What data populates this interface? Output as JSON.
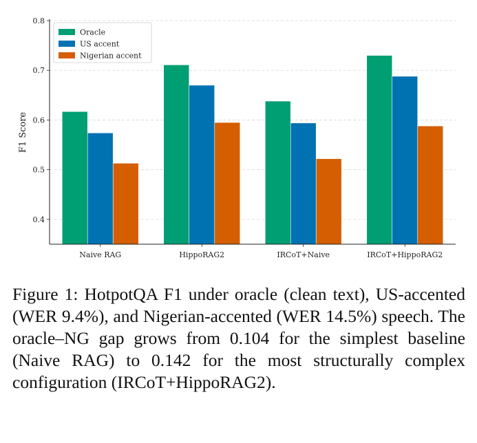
{
  "chart_data": {
    "type": "bar",
    "categories": [
      "Naive RAG",
      "HippoRAG2",
      "IRCoT+Naive",
      "IRCoT+HippoRAG2"
    ],
    "series": [
      {
        "name": "Oracle",
        "values": [
          0.617,
          0.711,
          0.638,
          0.73
        ],
        "color": "#009e73"
      },
      {
        "name": "US accent",
        "values": [
          0.574,
          0.67,
          0.594,
          0.688
        ],
        "color": "#0072b2"
      },
      {
        "name": "Nigerian accent",
        "values": [
          0.513,
          0.595,
          0.522,
          0.588
        ],
        "color": "#d55e00"
      }
    ],
    "ylabel": "F1 Score",
    "xlabel": "",
    "ylim": [
      0.35,
      0.8
    ],
    "yticks": [
      "0.4",
      "0.5",
      "0.6",
      "0.7",
      "0.8"
    ],
    "grid": "y-dashed",
    "legend": "top-left"
  },
  "caption": "Figure 1: HotpotQA F1 under oracle (clean text), US-accented (WER 9.4%), and Nigerian-accented (WER 14.5%) speech.  The oracle–NG gap grows from 0.104 for the simplest baseline (Naive RAG) to 0.142 for the most structurally complex configuration (IRCoT+HippoRAG2)."
}
